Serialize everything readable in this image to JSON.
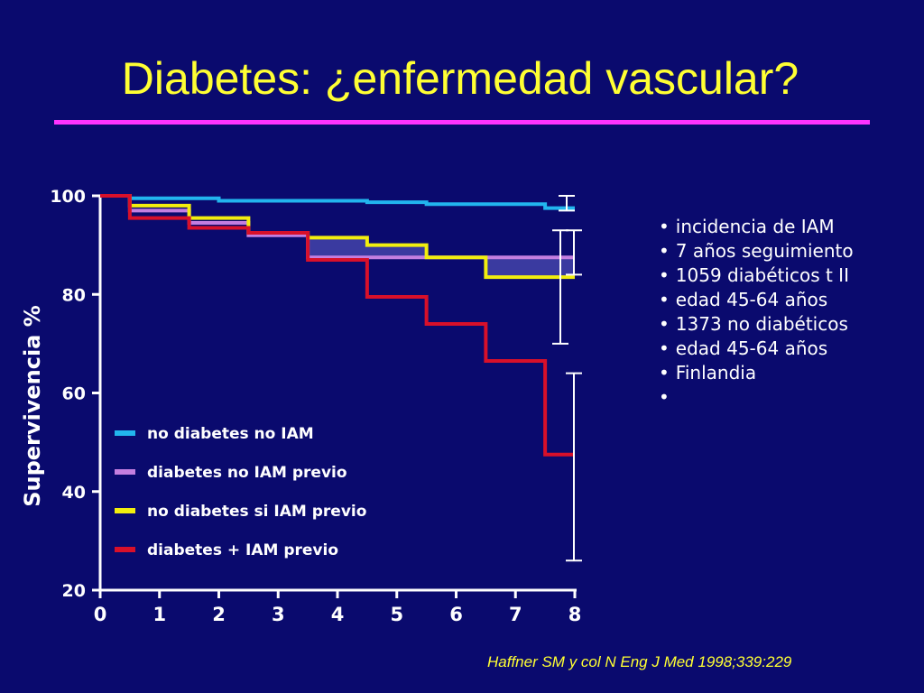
{
  "slide": {
    "title": "Diabetes: ¿enfermedad vascular?",
    "bullets": [
      "incidencia de IAM",
      "7 años seguimiento",
      "1059 diabéticos t II",
      "edad 45-64 años",
      "1373 no diabéticos",
      "edad 45-64 años",
      "Finlandia",
      ""
    ],
    "citation": "Haffner SM y col N Eng J Med 1998;339:229"
  },
  "colors": {
    "background": "#0a0a6e",
    "title": "#ffff33",
    "title_rule": "#ff33ff",
    "axis": "#ffffff",
    "shade": "#3a3aa0"
  },
  "chart_data": {
    "type": "line",
    "step": true,
    "ylabel": "Supervivencia %",
    "xlabel": "",
    "xlim": [
      0,
      8
    ],
    "ylim": [
      20,
      100
    ],
    "x_ticks": [
      0,
      1,
      2,
      3,
      4,
      5,
      6,
      7,
      8
    ],
    "y_ticks": [
      20,
      40,
      60,
      80,
      100
    ],
    "legend_placement": "bottom-left inside plot",
    "series": [
      {
        "name": "no diabetes no IAM",
        "color": "#22b5ee",
        "points": [
          [
            0,
            100
          ],
          [
            0.5,
            100
          ],
          [
            0.5,
            99.5
          ],
          [
            2,
            99.5
          ],
          [
            2,
            99
          ],
          [
            4.5,
            99
          ],
          [
            4.5,
            98.7
          ],
          [
            5.5,
            98.7
          ],
          [
            5.5,
            98.3
          ],
          [
            7.5,
            98.3
          ],
          [
            7.5,
            97.5
          ],
          [
            8,
            97.5
          ]
        ],
        "ci": [
          97,
          100
        ]
      },
      {
        "name": "diabetes no IAM previo",
        "color": "#c47fe0",
        "points": [
          [
            0,
            100
          ],
          [
            0.5,
            100
          ],
          [
            0.5,
            97
          ],
          [
            1.5,
            97
          ],
          [
            1.5,
            94.5
          ],
          [
            2.5,
            94.5
          ],
          [
            2.5,
            92
          ],
          [
            3.5,
            92
          ],
          [
            3.5,
            87.5
          ],
          [
            8,
            87.5
          ]
        ],
        "ci": [
          70,
          93
        ]
      },
      {
        "name": "no diabetes si IAM previo",
        "color": "#f2ee0e",
        "points": [
          [
            0,
            100
          ],
          [
            0.5,
            100
          ],
          [
            0.5,
            98
          ],
          [
            1.5,
            98
          ],
          [
            1.5,
            95.5
          ],
          [
            2.5,
            95.5
          ],
          [
            2.5,
            92.5
          ],
          [
            3.5,
            92.5
          ],
          [
            3.5,
            91.5
          ],
          [
            4.5,
            91.5
          ],
          [
            4.5,
            90
          ],
          [
            5.5,
            90
          ],
          [
            5.5,
            87.5
          ],
          [
            6.5,
            87.5
          ],
          [
            6.5,
            83.5
          ],
          [
            8,
            83.5
          ]
        ],
        "ci": [
          84,
          93
        ]
      },
      {
        "name": "diabetes + IAM previo",
        "color": "#d8102a",
        "points": [
          [
            0,
            100
          ],
          [
            0.5,
            100
          ],
          [
            0.5,
            95.5
          ],
          [
            1.5,
            95.5
          ],
          [
            1.5,
            93.5
          ],
          [
            2.5,
            93.5
          ],
          [
            2.5,
            92.5
          ],
          [
            3.5,
            92.5
          ],
          [
            3.5,
            87
          ],
          [
            4.5,
            87
          ],
          [
            4.5,
            79.5
          ],
          [
            5.5,
            79.5
          ],
          [
            5.5,
            74
          ],
          [
            6.5,
            74
          ],
          [
            6.5,
            66.5
          ],
          [
            7.5,
            66.5
          ],
          [
            7.5,
            47.5
          ],
          [
            8,
            47.5
          ]
        ],
        "ci": [
          26,
          64
        ]
      }
    ]
  }
}
